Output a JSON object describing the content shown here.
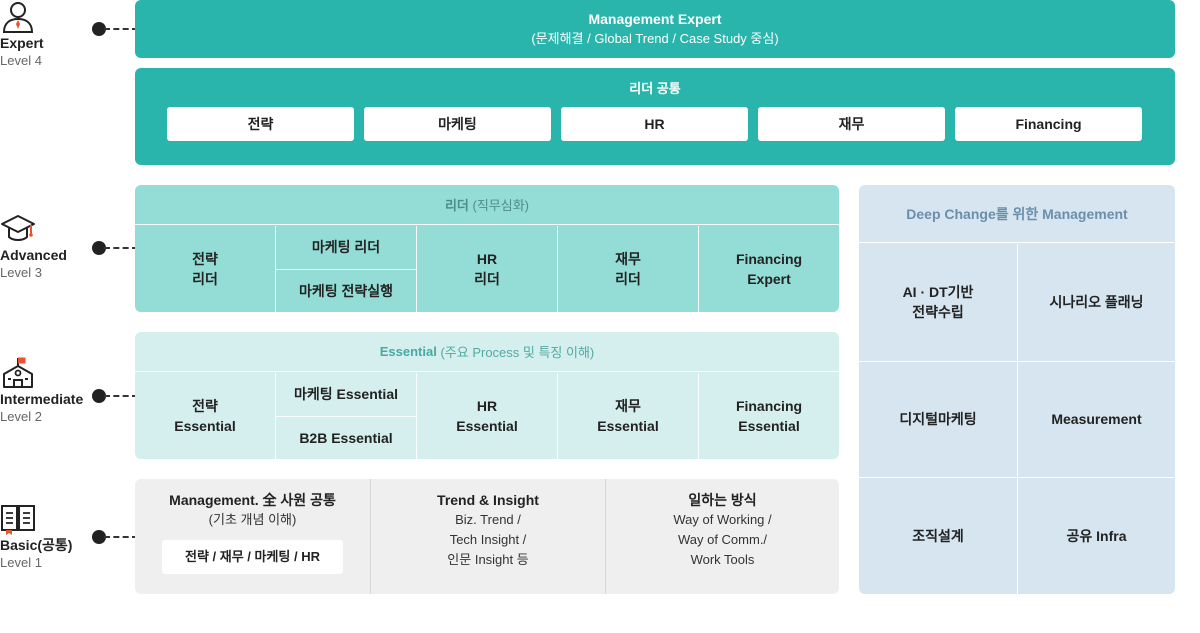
{
  "levels": [
    {
      "name": "Expert",
      "level": "Level 4",
      "icon": "person-icon"
    },
    {
      "name": "Advanced",
      "level": "Level 3",
      "icon": "graduation-cap-icon"
    },
    {
      "name": "Intermediate",
      "level": "Level 2",
      "icon": "school-building-icon"
    },
    {
      "name": "Basic(공통)",
      "level": "Level 1",
      "icon": "open-book-icon"
    }
  ],
  "expert": {
    "management": {
      "title": "Management Expert",
      "subtitle": "(문제해결 / Global Trend / Case Study 중심)"
    },
    "leader_common": {
      "title": "리더 공통",
      "items": [
        "전략",
        "마케팅",
        "HR",
        "재무",
        "Financing"
      ]
    }
  },
  "advanced": {
    "title_bold": "리더",
    "title_sub": "(직무심화)",
    "cells": {
      "strategy": [
        "전략",
        "리더"
      ],
      "marketing": [
        "마케팅 리더",
        "마케팅 전략실행"
      ],
      "hr": [
        "HR",
        "리더"
      ],
      "finance": [
        "재무",
        "리더"
      ],
      "financing": [
        "Financing",
        "Expert"
      ]
    }
  },
  "intermediate": {
    "title_bold": "Essential",
    "title_sub": "(주요 Process 및 특징 이해)",
    "cells": {
      "strategy": [
        "전략",
        "Essential"
      ],
      "marketing": [
        "마케팅 Essential",
        "B2B Essential"
      ],
      "hr": [
        "HR",
        "Essential"
      ],
      "finance": [
        "재무",
        "Essential"
      ],
      "financing": [
        "Financing",
        "Essential"
      ]
    }
  },
  "basic": {
    "col1": {
      "title": "Management. 全 사원 공통",
      "subtitle": "(기초 개념 이해)",
      "box": "전략 / 재무 / 마케팅 / HR"
    },
    "col2": {
      "title": "Trend & Insight",
      "lines": [
        "Biz. Trend /",
        "Tech Insight /",
        "인문 Insight 등"
      ]
    },
    "col3": {
      "title": "일하는 방식",
      "lines": [
        "Way of Working /",
        "Way of Comm./",
        "Work Tools"
      ]
    }
  },
  "deep_change": {
    "title": "Deep Change를 위한 Management",
    "cells": [
      [
        "AI · DT기반",
        "전략수립"
      ],
      [
        "시나리오 플래닝"
      ],
      [
        "디지털마케팅"
      ],
      [
        "Measurement"
      ],
      [
        "조직설계"
      ],
      [
        "공유 Infra"
      ]
    ]
  },
  "colors": {
    "expert": "#29b5ac",
    "advanced": "#94dcd6",
    "intermediate": "#d4efee",
    "basic": "#efefef",
    "deep_change": "#d6e5ef",
    "icon_accent": "#e8542f"
  }
}
